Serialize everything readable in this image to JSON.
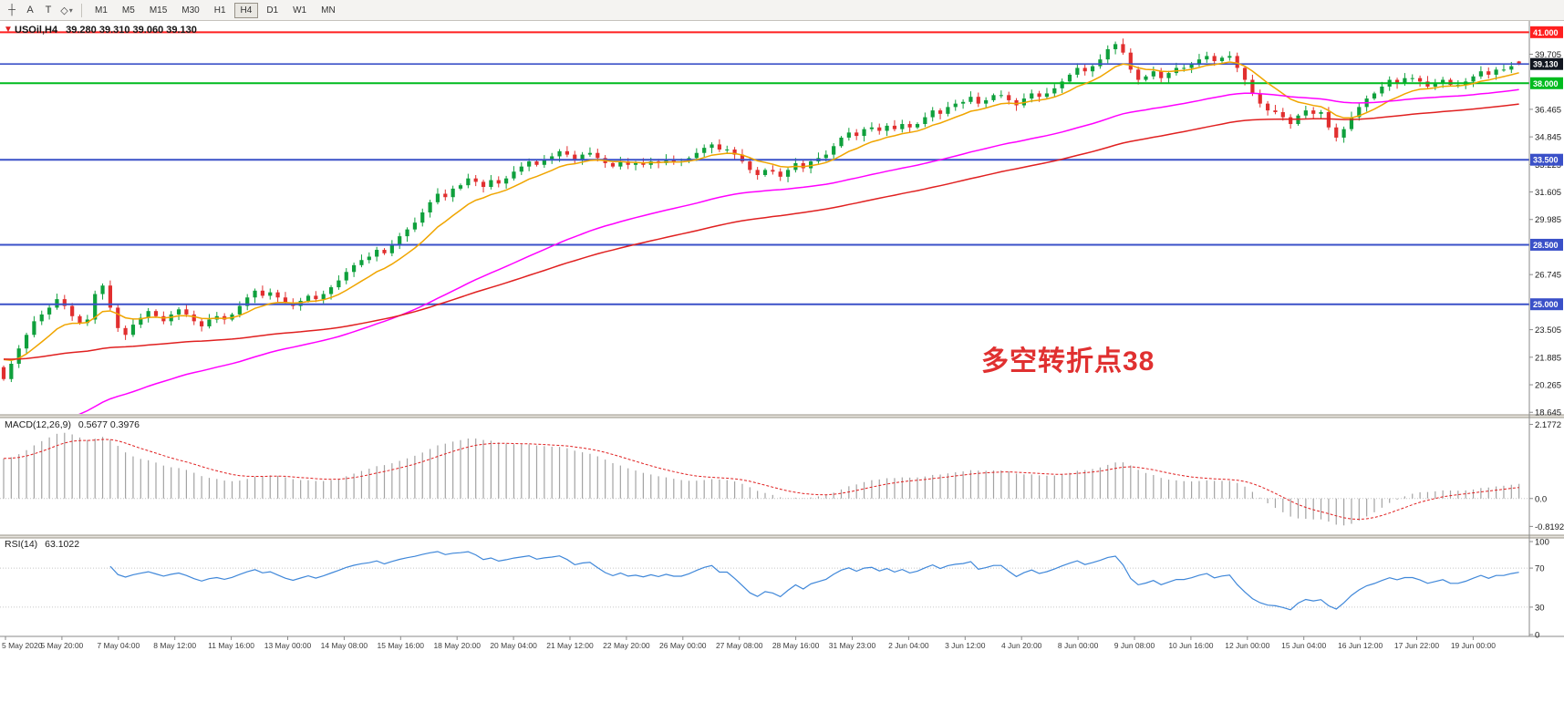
{
  "colors": {
    "up": "#0fa03c",
    "down": "#e12f2f",
    "ma_fast": "#f0a500",
    "ma_mid": "#ff00ff",
    "ma_slow": "#e02020",
    "macd_hist": "#a3a3a3",
    "macd_signal": "#e02020",
    "rsi_line": "#3f87d9",
    "level_red": "#ff1f1f",
    "level_green": "#00bb1e",
    "level_blue": "#3a50c8",
    "current_tag_bg": "#11161f",
    "axis_text": "#1a1a1a",
    "time_text": "#3c3c3c",
    "dotted": "#c6c6c6",
    "splitter_fill": "#e7e4de",
    "splitter_edge": "#989488"
  },
  "toolbar": {
    "tools": [
      {
        "name": "crosshair-tool",
        "glyph": "┼"
      },
      {
        "name": "label-a-tool",
        "glyph": "A"
      },
      {
        "name": "text-tool",
        "glyph": "T"
      },
      {
        "name": "shapes-tool",
        "glyph": "◇",
        "caret": "▾"
      }
    ],
    "timeframes": [
      {
        "label": "M1"
      },
      {
        "label": "M5"
      },
      {
        "label": "M15"
      },
      {
        "label": "M30"
      },
      {
        "label": "H1"
      },
      {
        "label": "H4",
        "active": true
      },
      {
        "label": "D1"
      },
      {
        "label": "W1"
      },
      {
        "label": "MN"
      }
    ]
  },
  "chart": {
    "title_symbol": "USOil,H4",
    "title_ohlc": "39.280 39.310 39.060 39.130",
    "current_price": {
      "value": 39.13,
      "label": "39.130"
    },
    "price_axis_labels": [
      {
        "v": 39.705,
        "t": "39.705"
      },
      {
        "v": 36.465,
        "t": "36.465"
      },
      {
        "v": 34.845,
        "t": "34.845"
      },
      {
        "v": 33.225,
        "t": "33.225"
      },
      {
        "v": 31.605,
        "t": "31.605"
      },
      {
        "v": 29.985,
        "t": "29.985"
      },
      {
        "v": 26.745,
        "t": "26.745"
      },
      {
        "v": 23.505,
        "t": "23.505"
      },
      {
        "v": 21.885,
        "t": "21.885"
      },
      {
        "v": 20.265,
        "t": "20.265"
      },
      {
        "v": 18.645,
        "t": "18.645"
      }
    ]
  },
  "panels": {
    "macd": {
      "label": "MACD(12,26,9)",
      "values": "0.5677 0.3976",
      "axis": [
        {
          "v": 2.1772,
          "t": "2.1772"
        },
        {
          "v": 0,
          "t": "0.0"
        },
        {
          "v": -0.8192,
          "t": "-0.8192"
        }
      ]
    },
    "rsi": {
      "label": "RSI(14)",
      "value": "63.1022",
      "axis": [
        {
          "v": 100,
          "t": "100"
        },
        {
          "v": 70,
          "t": "70"
        },
        {
          "v": 30,
          "t": "30"
        },
        {
          "v": 0,
          "t": "0"
        }
      ]
    }
  },
  "time_axis": {
    "labels": [
      "5 May 2020",
      "5 May 20:00",
      "7 May 04:00",
      "8 May 12:00",
      "11 May 16:00",
      "13 May 00:00",
      "14 May 08:00",
      "15 May 16:00",
      "18 May 20:00",
      "20 May 04:00",
      "21 May 12:00",
      "22 May 20:00",
      "26 May 00:00",
      "27 May 08:00",
      "28 May 16:00",
      "31 May 23:00",
      "2 Jun 04:00",
      "3 Jun 12:00",
      "4 Jun 20:00",
      "8 Jun 00:00",
      "9 Jun 08:00",
      "10 Jun 16:00",
      "12 Jun 00:00",
      "15 Jun 04:00",
      "16 Jun 12:00",
      "17 Jun 22:00",
      "19 Jun 00:00"
    ]
  },
  "chart_data": {
    "type": "candlestick",
    "symbol": "USOil",
    "timeframe": "H4",
    "x_start_label": "5 May 2020",
    "x_end_label": "19 Jun 00:00",
    "price_axis": {
      "min": 18.55,
      "max": 41.5
    },
    "first_open": 21.3,
    "closes": [
      20.6,
      21.5,
      22.4,
      23.2,
      24.0,
      24.4,
      24.8,
      25.3,
      24.9,
      24.3,
      23.9,
      24.1,
      25.6,
      26.1,
      24.8,
      23.6,
      23.2,
      23.8,
      24.2,
      24.6,
      24.3,
      24.0,
      24.4,
      24.7,
      24.4,
      24.0,
      23.7,
      24.1,
      24.3,
      24.1,
      24.4,
      24.9,
      25.4,
      25.8,
      25.5,
      25.7,
      25.4,
      25.1,
      24.9,
      25.2,
      25.5,
      25.3,
      25.6,
      26.0,
      26.4,
      26.9,
      27.3,
      27.6,
      27.8,
      28.2,
      28.0,
      28.5,
      29.0,
      29.4,
      29.8,
      30.4,
      31.0,
      31.5,
      31.3,
      31.8,
      32.0,
      32.4,
      32.2,
      31.9,
      32.3,
      32.1,
      32.4,
      32.8,
      33.1,
      33.4,
      33.2,
      33.5,
      33.7,
      34.0,
      33.8,
      33.5,
      33.8,
      33.9,
      33.6,
      33.3,
      33.1,
      33.4,
      33.2,
      33.3,
      33.2,
      33.4,
      33.3,
      33.5,
      33.4,
      33.4,
      33.6,
      33.9,
      34.2,
      34.4,
      34.1,
      34.1,
      33.8,
      33.4,
      32.9,
      32.6,
      32.9,
      32.8,
      32.5,
      32.9,
      33.3,
      33.0,
      33.4,
      33.6,
      33.8,
      34.3,
      34.8,
      35.1,
      34.9,
      35.3,
      35.4,
      35.2,
      35.5,
      35.3,
      35.6,
      35.4,
      35.6,
      36.0,
      36.4,
      36.2,
      36.6,
      36.8,
      36.9,
      37.2,
      36.8,
      37.0,
      37.3,
      37.3,
      37.0,
      36.7,
      37.1,
      37.4,
      37.2,
      37.4,
      37.7,
      38.1,
      38.5,
      38.9,
      38.7,
      39.0,
      39.4,
      40.0,
      40.3,
      39.8,
      38.8,
      38.2,
      38.4,
      38.7,
      38.3,
      38.6,
      38.9,
      38.9,
      39.1,
      39.4,
      39.6,
      39.3,
      39.5,
      39.6,
      38.9,
      38.2,
      37.4,
      36.8,
      36.4,
      36.3,
      36.0,
      35.6,
      36.1,
      36.4,
      36.2,
      36.3,
      35.4,
      34.8,
      35.3,
      36.0,
      36.6,
      37.1,
      37.4,
      37.8,
      38.2,
      38.0,
      38.3,
      38.3,
      38.1,
      37.8,
      38.0,
      38.2,
      37.9,
      37.9,
      38.1,
      38.4,
      38.7,
      38.5,
      38.8,
      38.8,
      39.0,
      39.13
    ],
    "last_bar": {
      "open": 39.28,
      "high": 39.31,
      "low": 39.06,
      "close": 39.13
    },
    "levels": [
      {
        "price": 41.0,
        "label": "41.000",
        "colorKey": "level_red"
      },
      {
        "price": 38.0,
        "label": "38.000",
        "colorKey": "level_green"
      },
      {
        "price": 33.5,
        "label": "33.500",
        "colorKey": "level_blue"
      },
      {
        "price": 28.5,
        "label": "28.500",
        "colorKey": "level_blue"
      },
      {
        "price": 25.0,
        "label": "25.000",
        "colorKey": "level_blue"
      }
    ],
    "bid_line": {
      "price": 39.13,
      "colorKey": "level_blue"
    },
    "moving_averages": [
      {
        "name": "fast",
        "period": 10,
        "seed": 22.0,
        "colorKey": "ma_fast"
      },
      {
        "name": "mid",
        "period": 55,
        "seed": 16.0,
        "colorKey": "ma_mid"
      },
      {
        "name": "slow",
        "period": 90,
        "seed": 21.8,
        "colorKey": "ma_slow"
      }
    ],
    "indicators": {
      "macd": {
        "fast": 12,
        "slow": 26,
        "signal": 9,
        "current_main": 0.5677,
        "current_signal": 0.3976,
        "axis_max": 2.1772,
        "axis_min": -0.8192
      },
      "rsi": {
        "period": 14,
        "current": 63.1022,
        "levels": [
          70,
          30
        ]
      }
    },
    "annotation": {
      "text": "多空转折点38",
      "color": "#e03030"
    }
  }
}
